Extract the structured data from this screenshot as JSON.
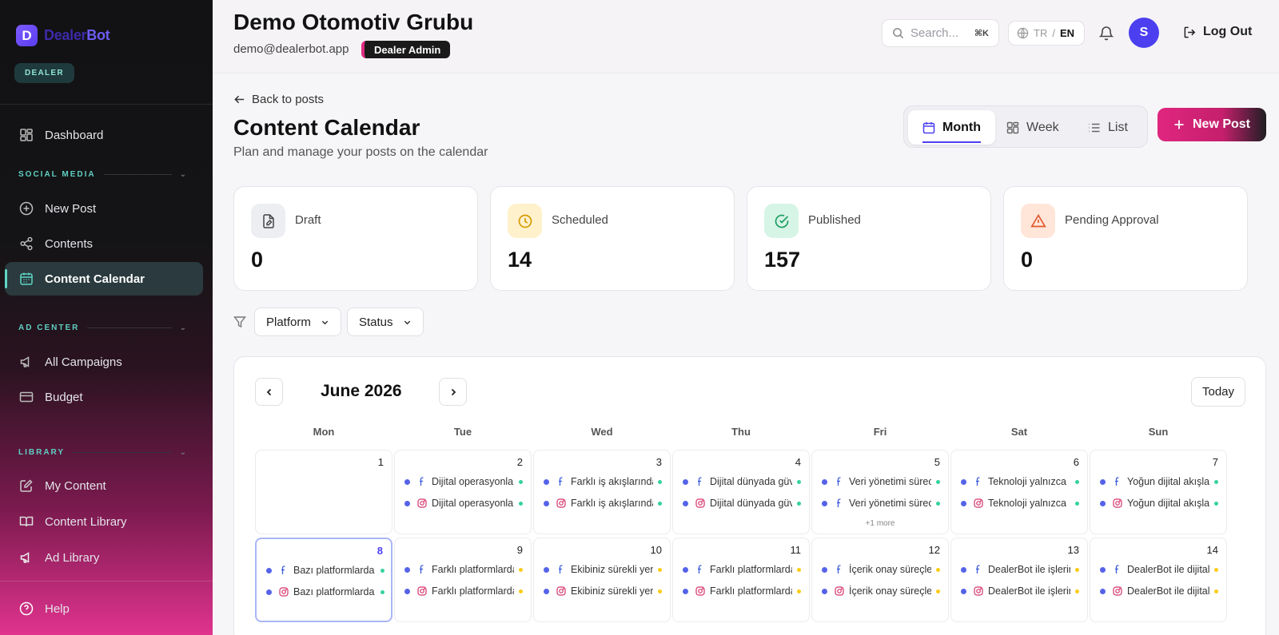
{
  "brand": {
    "logo_letter": "D",
    "name_a": "Dealer",
    "name_b": "Bot",
    "role": "DEALER"
  },
  "sidebar": {
    "dashboard": "Dashboard",
    "social_section": "SOCIAL MEDIA",
    "new_post": "New Post",
    "contents": "Contents",
    "content_calendar": "Content Calendar",
    "ad_section": "AD CENTER",
    "all_campaigns": "All Campaigns",
    "budget": "Budget",
    "library_section": "LIBRARY",
    "my_content": "My Content",
    "content_library": "Content Library",
    "ad_library": "Ad Library",
    "help": "Help"
  },
  "header": {
    "org_name": "Demo Otomotiv Grubu",
    "email": "demo@dealerbot.app",
    "badge": "Dealer Admin",
    "search_placeholder": "Search...",
    "search_shortcut": "⌘K",
    "lang_tr": "TR",
    "lang_sep": "/",
    "lang_en": "EN",
    "avatar_initial": "S",
    "logout": "Log Out"
  },
  "page": {
    "back": "Back to posts",
    "title": "Content Calendar",
    "subtitle": "Plan and manage your posts on the calendar",
    "views": {
      "month": "Month",
      "week": "Week",
      "list": "List"
    },
    "new_post": "New Post"
  },
  "stats": {
    "draft": {
      "label": "Draft",
      "value": "0"
    },
    "scheduled": {
      "label": "Scheduled",
      "value": "14"
    },
    "published": {
      "label": "Published",
      "value": "157"
    },
    "pending": {
      "label": "Pending Approval",
      "value": "0"
    }
  },
  "filters": {
    "platform": "Platform",
    "status": "Status"
  },
  "calendar": {
    "month_label": "June 2026",
    "today": "Today",
    "weekdays": [
      "Mon",
      "Tue",
      "Wed",
      "Thu",
      "Fri",
      "Sat",
      "Sun"
    ],
    "status_colors": {
      "published": "#34d399",
      "scheduled": "#facc15"
    },
    "platform_icons": [
      "facebook-icon",
      "instagram-icon"
    ],
    "days": [
      {
        "num": "1",
        "posts": []
      },
      {
        "num": "2",
        "posts": [
          {
            "text": "Dijital operasyonlar",
            "platform": "facebook",
            "status": "published"
          },
          {
            "text": "Dijital operasyonlar",
            "platform": "instagram",
            "status": "published"
          }
        ]
      },
      {
        "num": "3",
        "posts": [
          {
            "text": "Farklı iş akışlarında",
            "platform": "facebook",
            "status": "published"
          },
          {
            "text": "Farklı iş akışlarında",
            "platform": "instagram",
            "status": "published"
          }
        ]
      },
      {
        "num": "4",
        "posts": [
          {
            "text": "Dijital dünyada güven",
            "platform": "facebook",
            "status": "published"
          },
          {
            "text": "Dijital dünyada güven",
            "platform": "instagram",
            "status": "published"
          }
        ]
      },
      {
        "num": "5",
        "posts": [
          {
            "text": "Veri yönetimi sürecinde",
            "platform": "facebook",
            "status": "published"
          },
          {
            "text": "Veri yönetimi sürecinde",
            "platform": "facebook",
            "status": "published"
          }
        ],
        "more": "+1 more"
      },
      {
        "num": "6",
        "posts": [
          {
            "text": "Teknoloji yalnızca",
            "platform": "facebook",
            "status": "published"
          },
          {
            "text": "Teknoloji yalnızca",
            "platform": "instagram",
            "status": "published"
          }
        ]
      },
      {
        "num": "7",
        "posts": [
          {
            "text": "Yoğun dijital akışlar",
            "platform": "facebook",
            "status": "published"
          },
          {
            "text": "Yoğun dijital akışlar",
            "platform": "instagram",
            "status": "published"
          }
        ]
      },
      {
        "num": "8",
        "today": true,
        "posts": [
          {
            "text": "Bazı platformlarda",
            "platform": "facebook",
            "status": "published"
          },
          {
            "text": "Bazı platformlarda",
            "platform": "instagram",
            "status": "published"
          }
        ]
      },
      {
        "num": "9",
        "posts": [
          {
            "text": "Farklı platformlarda",
            "platform": "facebook",
            "status": "scheduled"
          },
          {
            "text": "Farklı platformlarda",
            "platform": "instagram",
            "status": "scheduled"
          }
        ]
      },
      {
        "num": "10",
        "posts": [
          {
            "text": "Ekibiniz sürekli yeni",
            "platform": "facebook",
            "status": "scheduled"
          },
          {
            "text": "Ekibiniz sürekli yeni",
            "platform": "instagram",
            "status": "scheduled"
          }
        ]
      },
      {
        "num": "11",
        "posts": [
          {
            "text": "Farklı platformlarda",
            "platform": "facebook",
            "status": "scheduled"
          },
          {
            "text": "Farklı platformlarda",
            "platform": "instagram",
            "status": "scheduled"
          }
        ]
      },
      {
        "num": "12",
        "posts": [
          {
            "text": "İçerik onay süreçleri",
            "platform": "facebook",
            "status": "scheduled"
          },
          {
            "text": "İçerik onay süreçleri",
            "platform": "instagram",
            "status": "scheduled"
          }
        ]
      },
      {
        "num": "13",
        "posts": [
          {
            "text": "DealerBot ile işlerinizi",
            "platform": "facebook",
            "status": "scheduled"
          },
          {
            "text": "DealerBot ile işlerinizi",
            "platform": "instagram",
            "status": "scheduled"
          }
        ]
      },
      {
        "num": "14",
        "posts": [
          {
            "text": "DealerBot ile dijital",
            "platform": "facebook",
            "status": "scheduled"
          },
          {
            "text": "DealerBot ile dijital",
            "platform": "instagram",
            "status": "scheduled"
          }
        ]
      }
    ]
  }
}
